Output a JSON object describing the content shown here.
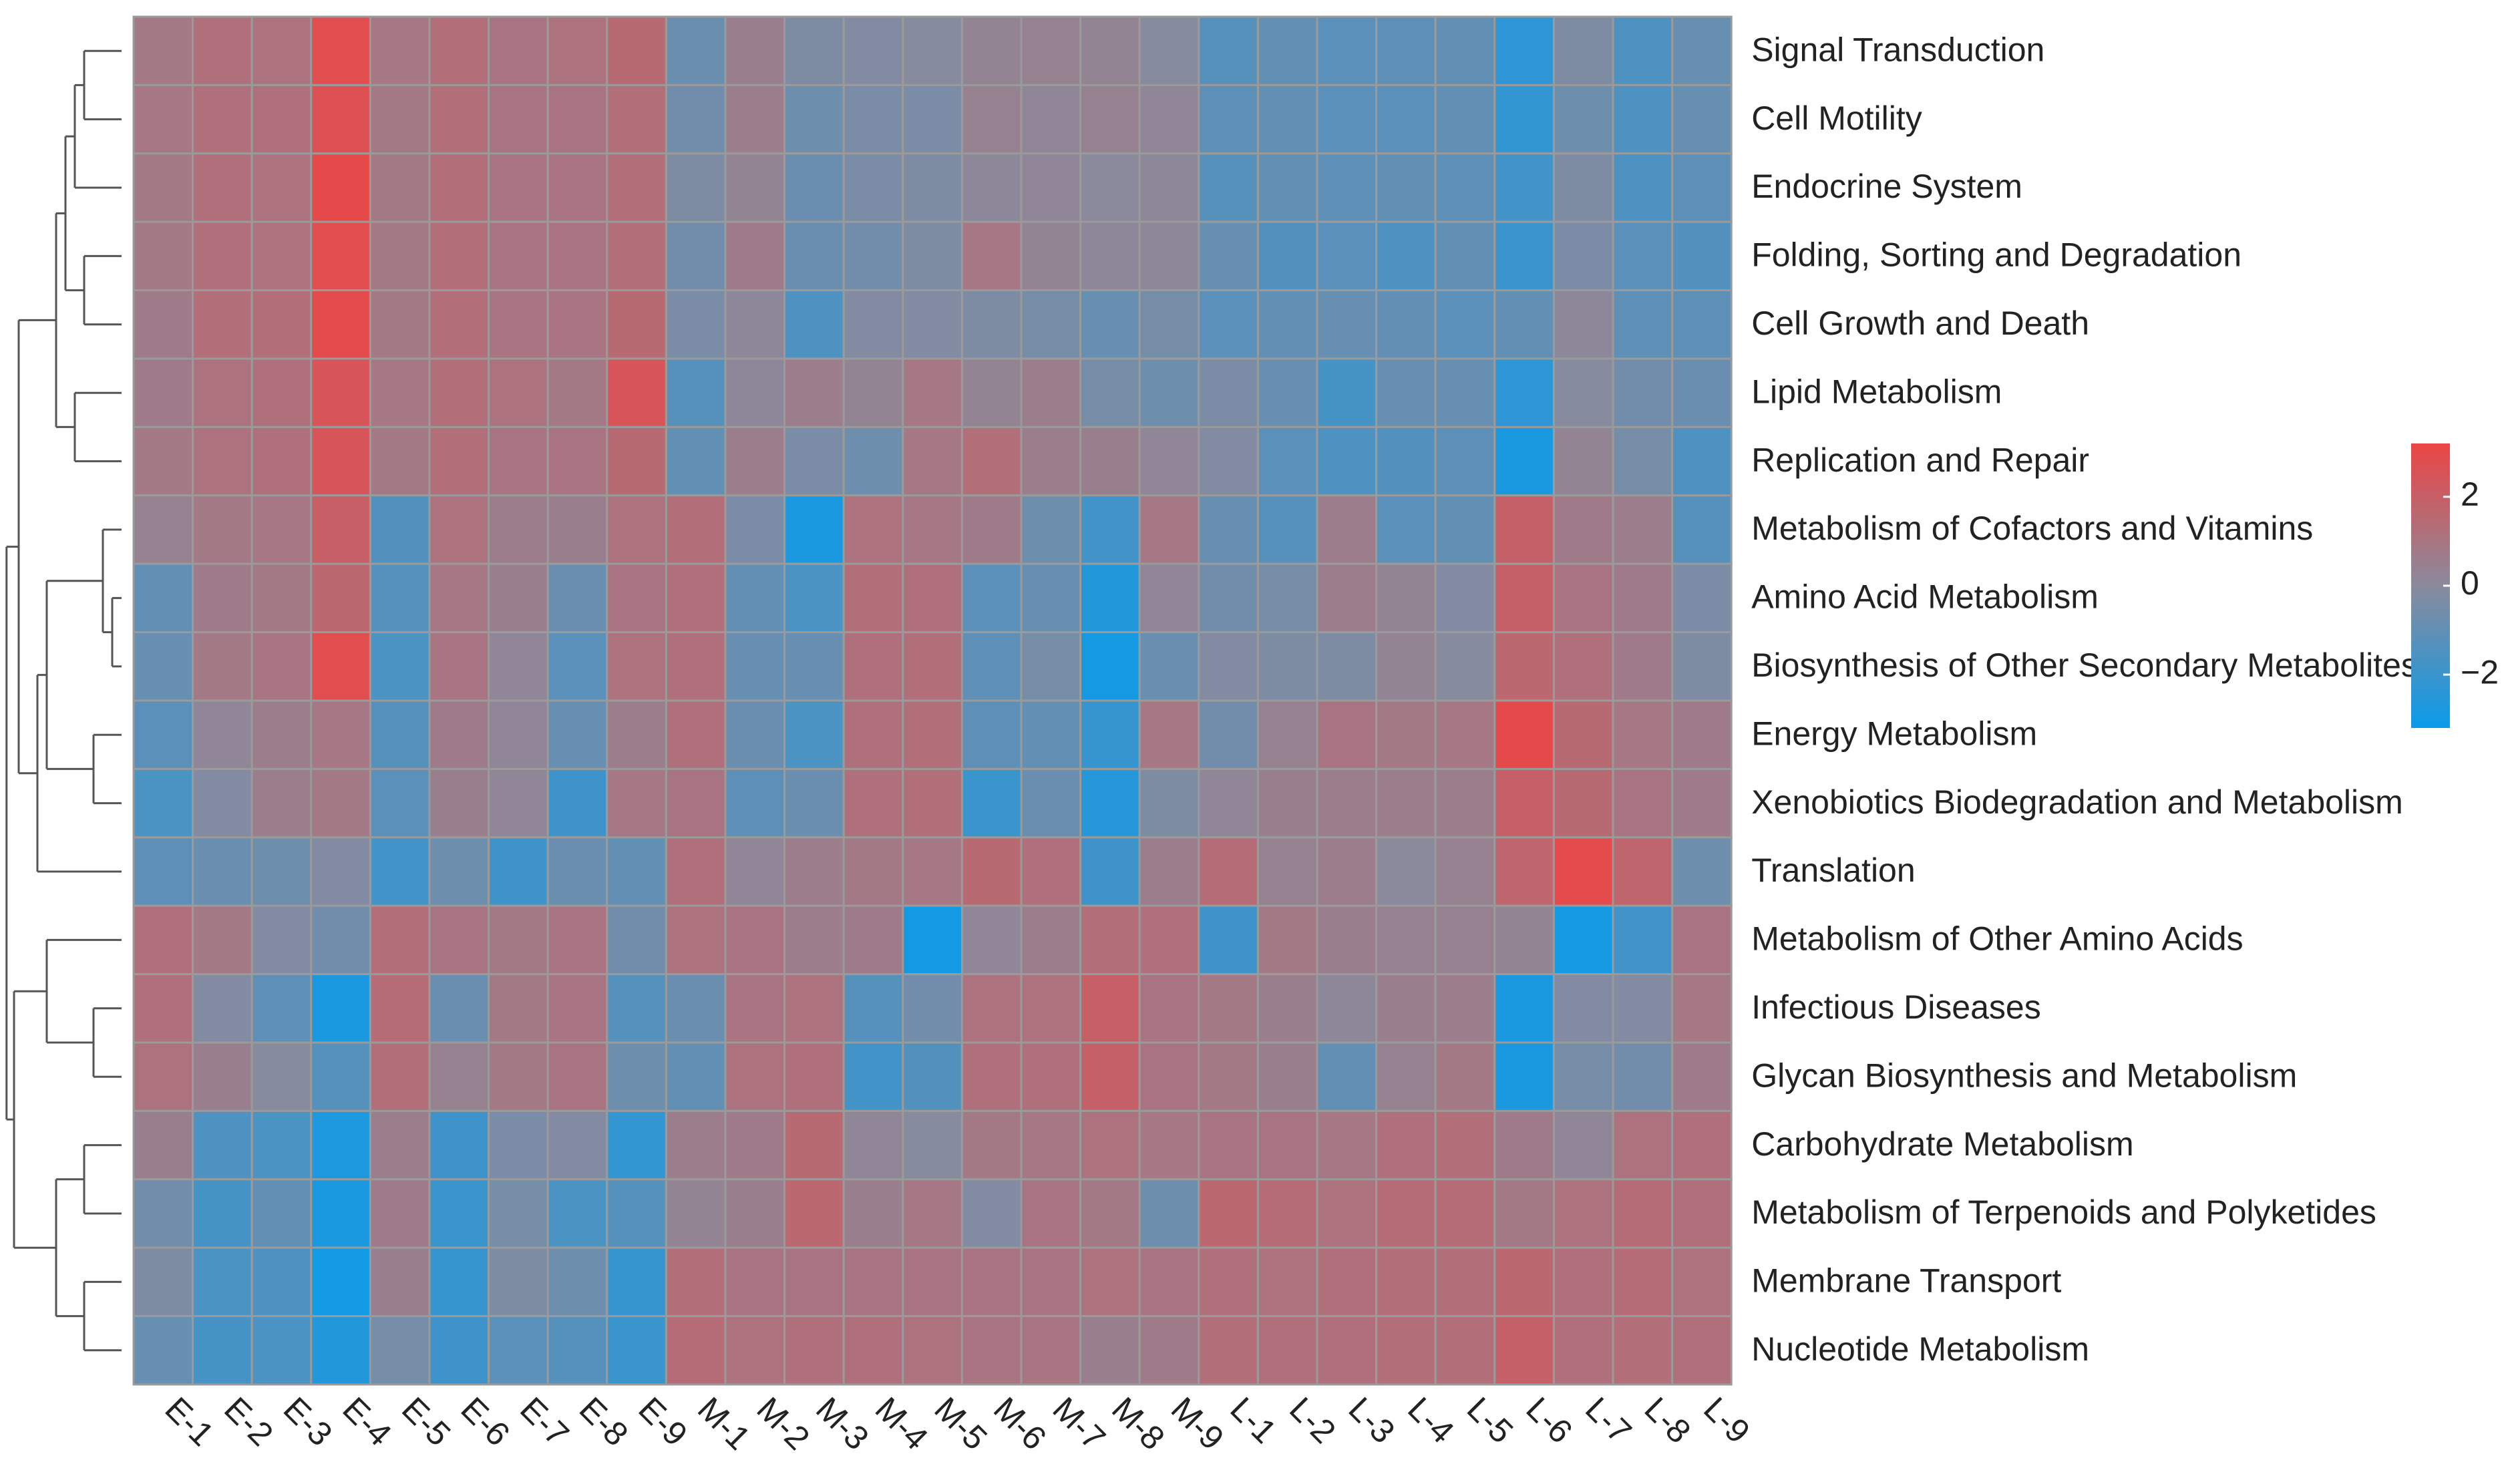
{
  "chart_data": {
    "type": "heatmap",
    "title": "",
    "xlabel": "",
    "ylabel": "",
    "columns": [
      "E-1",
      "E-2",
      "E-3",
      "E-4",
      "E-5",
      "E-6",
      "E-7",
      "E-8",
      "E-9",
      "M-1",
      "M-2",
      "M-3",
      "M-4",
      "M-5",
      "M-6",
      "M-7",
      "M-8",
      "M-9",
      "L-1",
      "L-2",
      "L-3",
      "L-4",
      "L-5",
      "L-6",
      "L-7",
      "L-8",
      "L-9"
    ],
    "rows": [
      "Signal Transduction",
      "Cell Motility",
      "Endocrine System",
      "Folding, Sorting and Degradation",
      "Cell Growth and Death",
      "Lipid Metabolism",
      "Replication and Repair",
      "Metabolism of Cofactors and Vitamins",
      "Amino Acid Metabolism",
      "Biosynthesis of Other Secondary Metabolites",
      "Energy Metabolism",
      "Xenobiotics Biodegradation and Metabolism",
      "Translation",
      "Metabolism of Other Amino Acids",
      "Infectious Diseases",
      "Glycan Biosynthesis and Metabolism",
      "Carbohydrate Metabolism",
      "Metabolism of Terpenoids and Polyketides",
      "Membrane Transport",
      "Nucleotide Metabolism"
    ],
    "values": [
      [
        0.8,
        1.2,
        1.1,
        2.8,
        0.9,
        1.3,
        1.0,
        1.1,
        1.5,
        -0.8,
        0.5,
        -0.3,
        -0.2,
        -0.1,
        0.3,
        0.4,
        0.3,
        -0.1,
        -1.3,
        -1.0,
        -1.2,
        -1.1,
        -1.0,
        -2.3,
        -0.3,
        -1.5,
        -0.9
      ],
      [
        0.9,
        1.2,
        1.2,
        2.7,
        0.8,
        1.3,
        1.0,
        1.0,
        1.3,
        -0.6,
        0.6,
        -0.7,
        -0.4,
        -0.4,
        0.4,
        0.2,
        0.4,
        0.2,
        -1.1,
        -1.0,
        -1.2,
        -1.2,
        -1.0,
        -2.2,
        -0.7,
        -1.5,
        -0.9
      ],
      [
        0.8,
        1.2,
        1.1,
        3.0,
        0.8,
        1.3,
        1.0,
        1.0,
        1.3,
        -0.3,
        0.3,
        -0.8,
        -0.4,
        -0.3,
        0.1,
        0.2,
        0.0,
        0.1,
        -1.3,
        -1.0,
        -1.1,
        -1.0,
        -1.1,
        -1.8,
        -0.3,
        -1.5,
        -1.1
      ],
      [
        0.8,
        1.2,
        1.1,
        2.8,
        0.8,
        1.3,
        1.0,
        1.0,
        1.3,
        -0.6,
        0.7,
        -0.8,
        -0.6,
        -0.3,
        0.9,
        0.3,
        0.1,
        0.1,
        -0.9,
        -1.4,
        -1.2,
        -1.5,
        -1.0,
        -2.0,
        -0.4,
        -1.2,
        -1.4
      ],
      [
        0.7,
        1.3,
        1.3,
        2.9,
        0.8,
        1.3,
        1.0,
        1.0,
        1.5,
        -0.4,
        0.1,
        -1.5,
        -0.2,
        -0.2,
        -0.3,
        -0.5,
        -0.9,
        -0.5,
        -1.2,
        -1.0,
        -0.9,
        -1.0,
        -1.2,
        -1.0,
        0.1,
        -1.1,
        -1.1
      ],
      [
        0.7,
        1.1,
        1.2,
        2.5,
        0.9,
        1.3,
        1.1,
        0.8,
        2.5,
        -1.3,
        0.1,
        0.6,
        0.3,
        0.9,
        0.3,
        0.6,
        -0.5,
        -0.7,
        -0.4,
        -0.9,
        -1.7,
        -0.9,
        -0.9,
        -2.3,
        -0.1,
        -0.6,
        -0.8
      ],
      [
        0.8,
        1.1,
        1.2,
        2.5,
        0.8,
        1.3,
        1.0,
        1.0,
        1.5,
        -1.0,
        0.6,
        -0.4,
        -0.7,
        0.9,
        1.3,
        0.6,
        0.5,
        0.2,
        -0.2,
        -1.2,
        -1.5,
        -1.4,
        -1.1,
        -2.8,
        0.3,
        -0.5,
        -1.5
      ],
      [
        0.4,
        0.8,
        0.9,
        2.0,
        -1.4,
        1.1,
        0.6,
        0.5,
        1.1,
        1.3,
        -0.4,
        -2.8,
        1.1,
        0.9,
        0.7,
        -0.7,
        -1.8,
        0.9,
        -0.9,
        -1.3,
        0.6,
        -1.2,
        -1.0,
        1.9,
        0.7,
        0.6,
        -1.3
      ],
      [
        -1.0,
        0.7,
        0.8,
        1.6,
        -1.3,
        0.9,
        0.5,
        -0.8,
        1.0,
        1.2,
        -1.0,
        -1.6,
        1.3,
        1.2,
        -1.2,
        -0.9,
        -2.6,
        0.2,
        -0.6,
        -0.5,
        0.6,
        0.3,
        -0.2,
        1.9,
        1.0,
        0.7,
        -0.4
      ],
      [
        -0.9,
        0.8,
        1.0,
        2.8,
        -1.6,
        1.0,
        0.2,
        -1.2,
        1.1,
        1.2,
        -0.9,
        -0.9,
        1.2,
        1.3,
        -1.1,
        -0.5,
        -2.9,
        -0.8,
        -0.2,
        -0.3,
        -0.3,
        0.3,
        -0.1,
        1.6,
        1.2,
        0.7,
        -0.3
      ],
      [
        -1.2,
        0.2,
        0.6,
        0.9,
        -1.3,
        0.7,
        0.2,
        -0.9,
        0.6,
        1.2,
        -0.8,
        -1.6,
        1.2,
        1.3,
        -1.1,
        -1.0,
        -2.1,
        0.9,
        -0.6,
        0.4,
        1.0,
        0.8,
        0.9,
        3.0,
        1.5,
        0.9,
        0.7
      ],
      [
        -1.6,
        -0.2,
        0.6,
        0.8,
        -1.2,
        0.5,
        0.2,
        -1.9,
        0.9,
        1.0,
        -1.1,
        -0.8,
        1.2,
        1.3,
        -2.0,
        -0.8,
        -2.5,
        -0.3,
        0.2,
        0.5,
        0.6,
        0.6,
        0.6,
        2.0,
        1.5,
        1.0,
        0.7
      ],
      [
        -1.1,
        -0.8,
        -0.7,
        -0.2,
        -1.8,
        -0.7,
        -1.9,
        -0.8,
        -1.0,
        1.2,
        0.2,
        0.6,
        0.8,
        0.9,
        1.5,
        1.2,
        -1.9,
        0.6,
        1.4,
        0.4,
        0.6,
        0.0,
        0.4,
        1.7,
        2.9,
        1.7,
        -0.7
      ],
      [
        1.2,
        0.8,
        -0.2,
        -0.6,
        1.3,
        1.0,
        0.8,
        1.0,
        -0.6,
        1.1,
        1.0,
        0.6,
        0.7,
        -3.0,
        0.2,
        0.6,
        1.3,
        1.2,
        -1.9,
        0.8,
        0.5,
        0.4,
        0.4,
        0.3,
        -2.9,
        -1.8,
        1.0
      ],
      [
        1.2,
        -0.2,
        -1.1,
        -2.8,
        1.4,
        -0.8,
        0.8,
        1.0,
        -1.3,
        -0.8,
        1.0,
        1.1,
        -1.3,
        -0.6,
        1.1,
        1.1,
        2.0,
        1.0,
        0.8,
        0.5,
        0.1,
        0.5,
        0.6,
        -2.8,
        -0.2,
        -0.2,
        0.9
      ],
      [
        1.1,
        0.5,
        -0.1,
        -1.3,
        1.3,
        0.4,
        0.8,
        1.0,
        -0.7,
        -1.0,
        1.1,
        1.2,
        -1.8,
        -1.4,
        1.2,
        1.2,
        1.9,
        1.0,
        0.8,
        0.5,
        -1.0,
        0.4,
        0.8,
        -2.8,
        -0.5,
        -0.6,
        0.7
      ],
      [
        0.5,
        -1.5,
        -1.6,
        -2.7,
        0.6,
        -1.9,
        -0.4,
        -0.2,
        -2.2,
        0.6,
        0.7,
        1.5,
        0.2,
        -0.1,
        0.8,
        0.9,
        1.1,
        0.9,
        1.0,
        1.0,
        0.9,
        1.2,
        1.3,
        0.7,
        0.2,
        1.1,
        1.2
      ],
      [
        -0.6,
        -1.7,
        -1.0,
        -2.8,
        0.7,
        -2.0,
        -0.5,
        -1.6,
        -1.3,
        0.3,
        0.5,
        1.6,
        0.5,
        0.9,
        -0.2,
        1.0,
        0.8,
        -0.7,
        1.6,
        1.4,
        1.1,
        1.4,
        1.4,
        0.8,
        1.1,
        1.4,
        1.2
      ],
      [
        -0.3,
        -1.6,
        -1.5,
        -3.0,
        0.5,
        -2.1,
        -0.3,
        -0.7,
        -2.1,
        1.3,
        1.0,
        1.0,
        1.0,
        1.0,
        1.0,
        1.0,
        1.1,
        1.0,
        1.2,
        1.1,
        1.2,
        1.3,
        1.3,
        1.6,
        1.2,
        1.4,
        1.1
      ],
      [
        -0.9,
        -1.7,
        -1.6,
        -2.6,
        -0.5,
        -1.9,
        -1.2,
        -1.3,
        -2.0,
        1.4,
        1.1,
        1.2,
        1.2,
        1.1,
        1.0,
        1.0,
        0.5,
        0.7,
        1.3,
        1.2,
        1.2,
        1.3,
        1.3,
        1.9,
        1.2,
        1.3,
        1.2
      ]
    ],
    "legend": {
      "ticks": [
        "2",
        "0",
        "−2"
      ],
      "tick_values": [
        2,
        0,
        -2
      ],
      "range": [
        -3.2,
        3.2
      ]
    },
    "color_scale": {
      "low": "#0a9bea",
      "mid": "#8a8a9c",
      "high": "#ec4545"
    }
  }
}
